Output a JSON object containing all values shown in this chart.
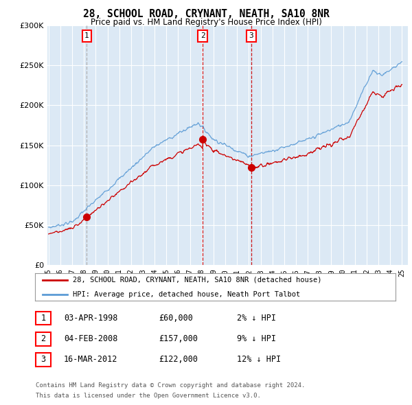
{
  "title": "28, SCHOOL ROAD, CRYNANT, NEATH, SA10 8NR",
  "subtitle": "Price paid vs. HM Land Registry's House Price Index (HPI)",
  "legend_line1": "28, SCHOOL ROAD, CRYNANT, NEATH, SA10 8NR (detached house)",
  "legend_line2": "HPI: Average price, detached house, Neath Port Talbot",
  "sales": [
    {
      "label": "1",
      "year": 1998.25,
      "price": 60000,
      "date": "03-APR-1998",
      "pct": "2% ↓ HPI",
      "vline_color": "#aaaaaa",
      "vline_style": "--"
    },
    {
      "label": "2",
      "year": 2008.08,
      "price": 157000,
      "date": "04-FEB-2008",
      "pct": "9% ↓ HPI",
      "vline_color": "#cc0000",
      "vline_style": "--"
    },
    {
      "label": "3",
      "year": 2012.21,
      "price": 122000,
      "date": "16-MAR-2012",
      "pct": "12% ↓ HPI",
      "vline_color": "#cc0000",
      "vline_style": "--"
    }
  ],
  "footer_line1": "Contains HM Land Registry data © Crown copyright and database right 2024.",
  "footer_line2": "This data is licensed under the Open Government Licence v3.0.",
  "hpi_color": "#5b9bd5",
  "price_color": "#cc0000",
  "background_color": "#ffffff",
  "chart_bg_color": "#dce9f5",
  "grid_color": "#ffffff",
  "ylim": [
    0,
    300000
  ],
  "xlim": [
    1994.9,
    2025.5
  ],
  "ylabel_ticks": [
    0,
    50000,
    100000,
    150000,
    200000,
    250000,
    300000
  ],
  "xtick_years": [
    1995,
    1996,
    1997,
    1998,
    1999,
    2000,
    2001,
    2002,
    2003,
    2004,
    2005,
    2006,
    2007,
    2008,
    2009,
    2010,
    2011,
    2012,
    2013,
    2014,
    2015,
    2016,
    2017,
    2018,
    2019,
    2020,
    2021,
    2022,
    2023,
    2024,
    2025
  ]
}
